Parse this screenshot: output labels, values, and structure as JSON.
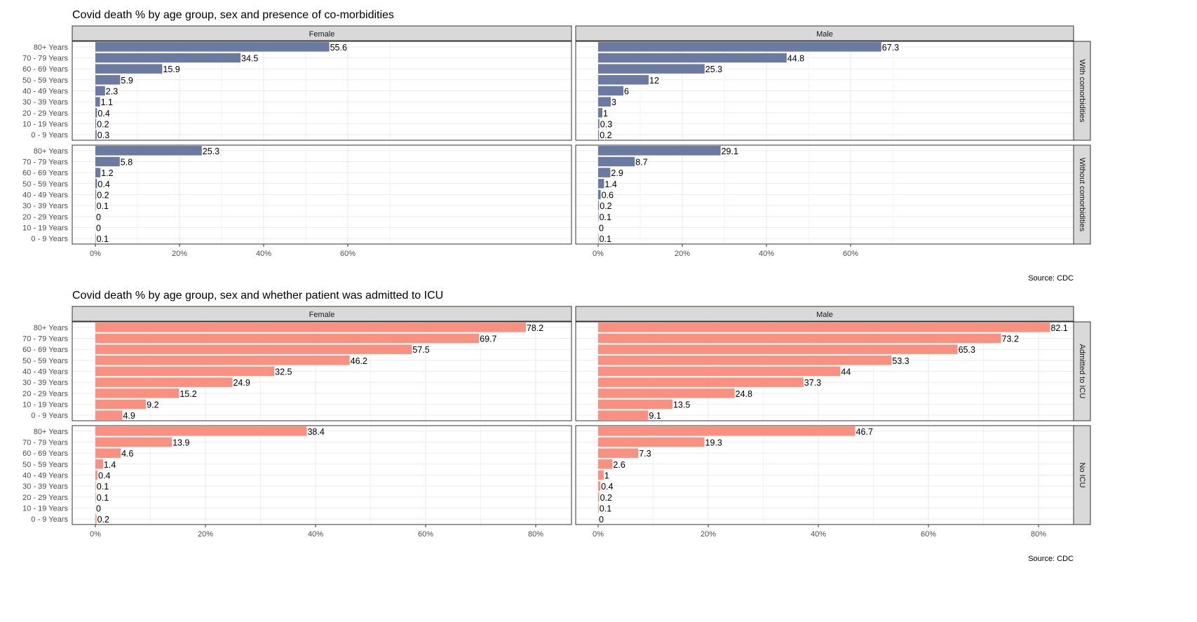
{
  "chart_data": [
    {
      "type": "bar",
      "orientation": "horizontal",
      "title": "Covid death % by age group, sex and presence of co-morbidities",
      "caption": "Source: CDC",
      "color": "#6b7aa1",
      "categories": [
        "80+ Years",
        "70 - 79 Years",
        "60 - 69 Years",
        "50 - 59 Years",
        "40 - 49 Years",
        "30 - 39 Years",
        "20 - 29 Years",
        "10 - 19 Years",
        "0 - 9 Years"
      ],
      "x_ticks": [
        "0%",
        "20%",
        "40%",
        "60%"
      ],
      "xlim": [
        0,
        70
      ],
      "grid": true,
      "columns": [
        "Female",
        "Male"
      ],
      "rows": [
        "With comorbidities",
        "Without comorbidities"
      ],
      "panels": [
        {
          "row": "With comorbidities",
          "column": "Female",
          "values": [
            55.6,
            34.5,
            15.9,
            5.9,
            2.3,
            1.1,
            0.4,
            0.2,
            0.3
          ]
        },
        {
          "row": "With comorbidities",
          "column": "Male",
          "values": [
            67.3,
            44.8,
            25.3,
            12,
            6,
            3,
            1,
            0.3,
            0.2
          ]
        },
        {
          "row": "Without comorbidities",
          "column": "Female",
          "values": [
            25.3,
            5.8,
            1.2,
            0.4,
            0.2,
            0.1,
            0,
            0,
            0.1
          ]
        },
        {
          "row": "Without comorbidities",
          "column": "Male",
          "values": [
            29.1,
            8.7,
            2.9,
            1.4,
            0.6,
            0.2,
            0.1,
            0,
            0.1
          ]
        }
      ]
    },
    {
      "type": "bar",
      "orientation": "horizontal",
      "title": "Covid death % by age group, sex and whether patient was admitted to ICU",
      "caption": "Source: CDC",
      "color": "#fa9080",
      "categories": [
        "80+ Years",
        "70 - 79 Years",
        "60 - 69 Years",
        "50 - 59 Years",
        "40 - 49 Years",
        "30 - 39 Years",
        "20 - 29 Years",
        "10 - 19 Years",
        "0 - 9 Years"
      ],
      "x_ticks": [
        "0%",
        "20%",
        "40%",
        "60%",
        "80%"
      ],
      "xlim": [
        0,
        86
      ],
      "grid": true,
      "columns": [
        "Female",
        "Male"
      ],
      "rows": [
        "Admitted to ICU",
        "No ICU"
      ],
      "panels": [
        {
          "row": "Admitted to ICU",
          "column": "Female",
          "values": [
            78.2,
            69.7,
            57.5,
            46.2,
            32.5,
            24.9,
            15.2,
            9.2,
            4.9
          ]
        },
        {
          "row": "Admitted to ICU",
          "column": "Male",
          "values": [
            82.1,
            73.2,
            65.3,
            53.3,
            44,
            37.3,
            24.8,
            13.5,
            9.1
          ]
        },
        {
          "row": "No ICU",
          "column": "Female",
          "values": [
            38.4,
            13.9,
            4.6,
            1.4,
            0.4,
            0.1,
            0.1,
            0,
            0.2
          ]
        },
        {
          "row": "No ICU",
          "column": "Male",
          "values": [
            46.7,
            19.3,
            7.3,
            2.6,
            1,
            0.4,
            0.2,
            0.1,
            0
          ]
        }
      ]
    }
  ]
}
